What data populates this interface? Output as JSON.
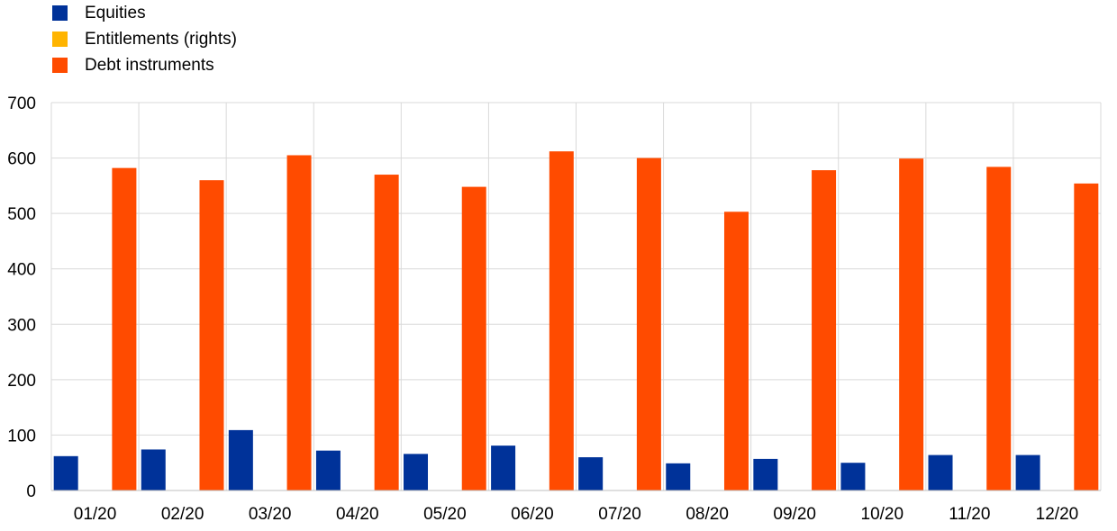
{
  "chart_data": {
    "type": "bar",
    "categories": [
      "01/20",
      "02/20",
      "03/20",
      "04/20",
      "05/20",
      "06/20",
      "07/20",
      "08/20",
      "09/20",
      "10/20",
      "11/20",
      "12/20"
    ],
    "series": [
      {
        "name": "Equities",
        "color": "#003299",
        "values": [
          62,
          74,
          109,
          72,
          66,
          81,
          60,
          49,
          57,
          50,
          64,
          64
        ]
      },
      {
        "name": "Entitlements (rights)",
        "color": "#ffb400",
        "values": [
          0,
          0,
          0,
          0,
          0,
          0,
          0,
          0,
          0,
          0,
          0,
          0
        ]
      },
      {
        "name": "Debt instruments",
        "color": "#ff4b00",
        "values": [
          582,
          560,
          605,
          570,
          548,
          612,
          600,
          503,
          578,
          599,
          584,
          554
        ]
      }
    ],
    "ylim": [
      0,
      700
    ],
    "yticks": [
      0,
      100,
      200,
      300,
      400,
      500,
      600,
      700
    ],
    "grid": true,
    "legend_position": "top-left"
  }
}
